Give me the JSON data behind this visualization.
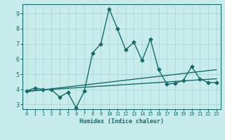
{
  "title": "",
  "xlabel": "Humidex (Indice chaleur)",
  "ylabel": "",
  "bg_color": "#c8ecec",
  "grid_color": "#a8d4d4",
  "line_color": "#1a6b6b",
  "xlim": [
    -0.5,
    23.5
  ],
  "ylim": [
    2.7,
    9.6
  ],
  "xticks": [
    0,
    1,
    2,
    3,
    4,
    5,
    6,
    7,
    8,
    9,
    10,
    11,
    12,
    13,
    14,
    15,
    16,
    17,
    18,
    19,
    20,
    21,
    22,
    23
  ],
  "yticks": [
    3,
    4,
    5,
    6,
    7,
    8,
    9
  ],
  "jagged_x": [
    0,
    1,
    2,
    3,
    4,
    5,
    6,
    7,
    8,
    9,
    10,
    11,
    12,
    13,
    14,
    15,
    16,
    17,
    18,
    19,
    20,
    21,
    22,
    23
  ],
  "jagged_y": [
    3.9,
    4.1,
    4.0,
    4.0,
    3.5,
    3.8,
    2.8,
    3.9,
    6.4,
    7.0,
    9.3,
    8.0,
    6.6,
    7.1,
    5.9,
    7.3,
    5.3,
    4.35,
    4.4,
    4.6,
    5.5,
    4.7,
    4.45,
    4.45
  ],
  "trend1_x": [
    0,
    23
  ],
  "trend1_y": [
    3.9,
    4.7
  ],
  "trend2_x": [
    0,
    23
  ],
  "trend2_y": [
    3.85,
    5.3
  ],
  "marker_size": 2.5,
  "line_width": 1.0
}
